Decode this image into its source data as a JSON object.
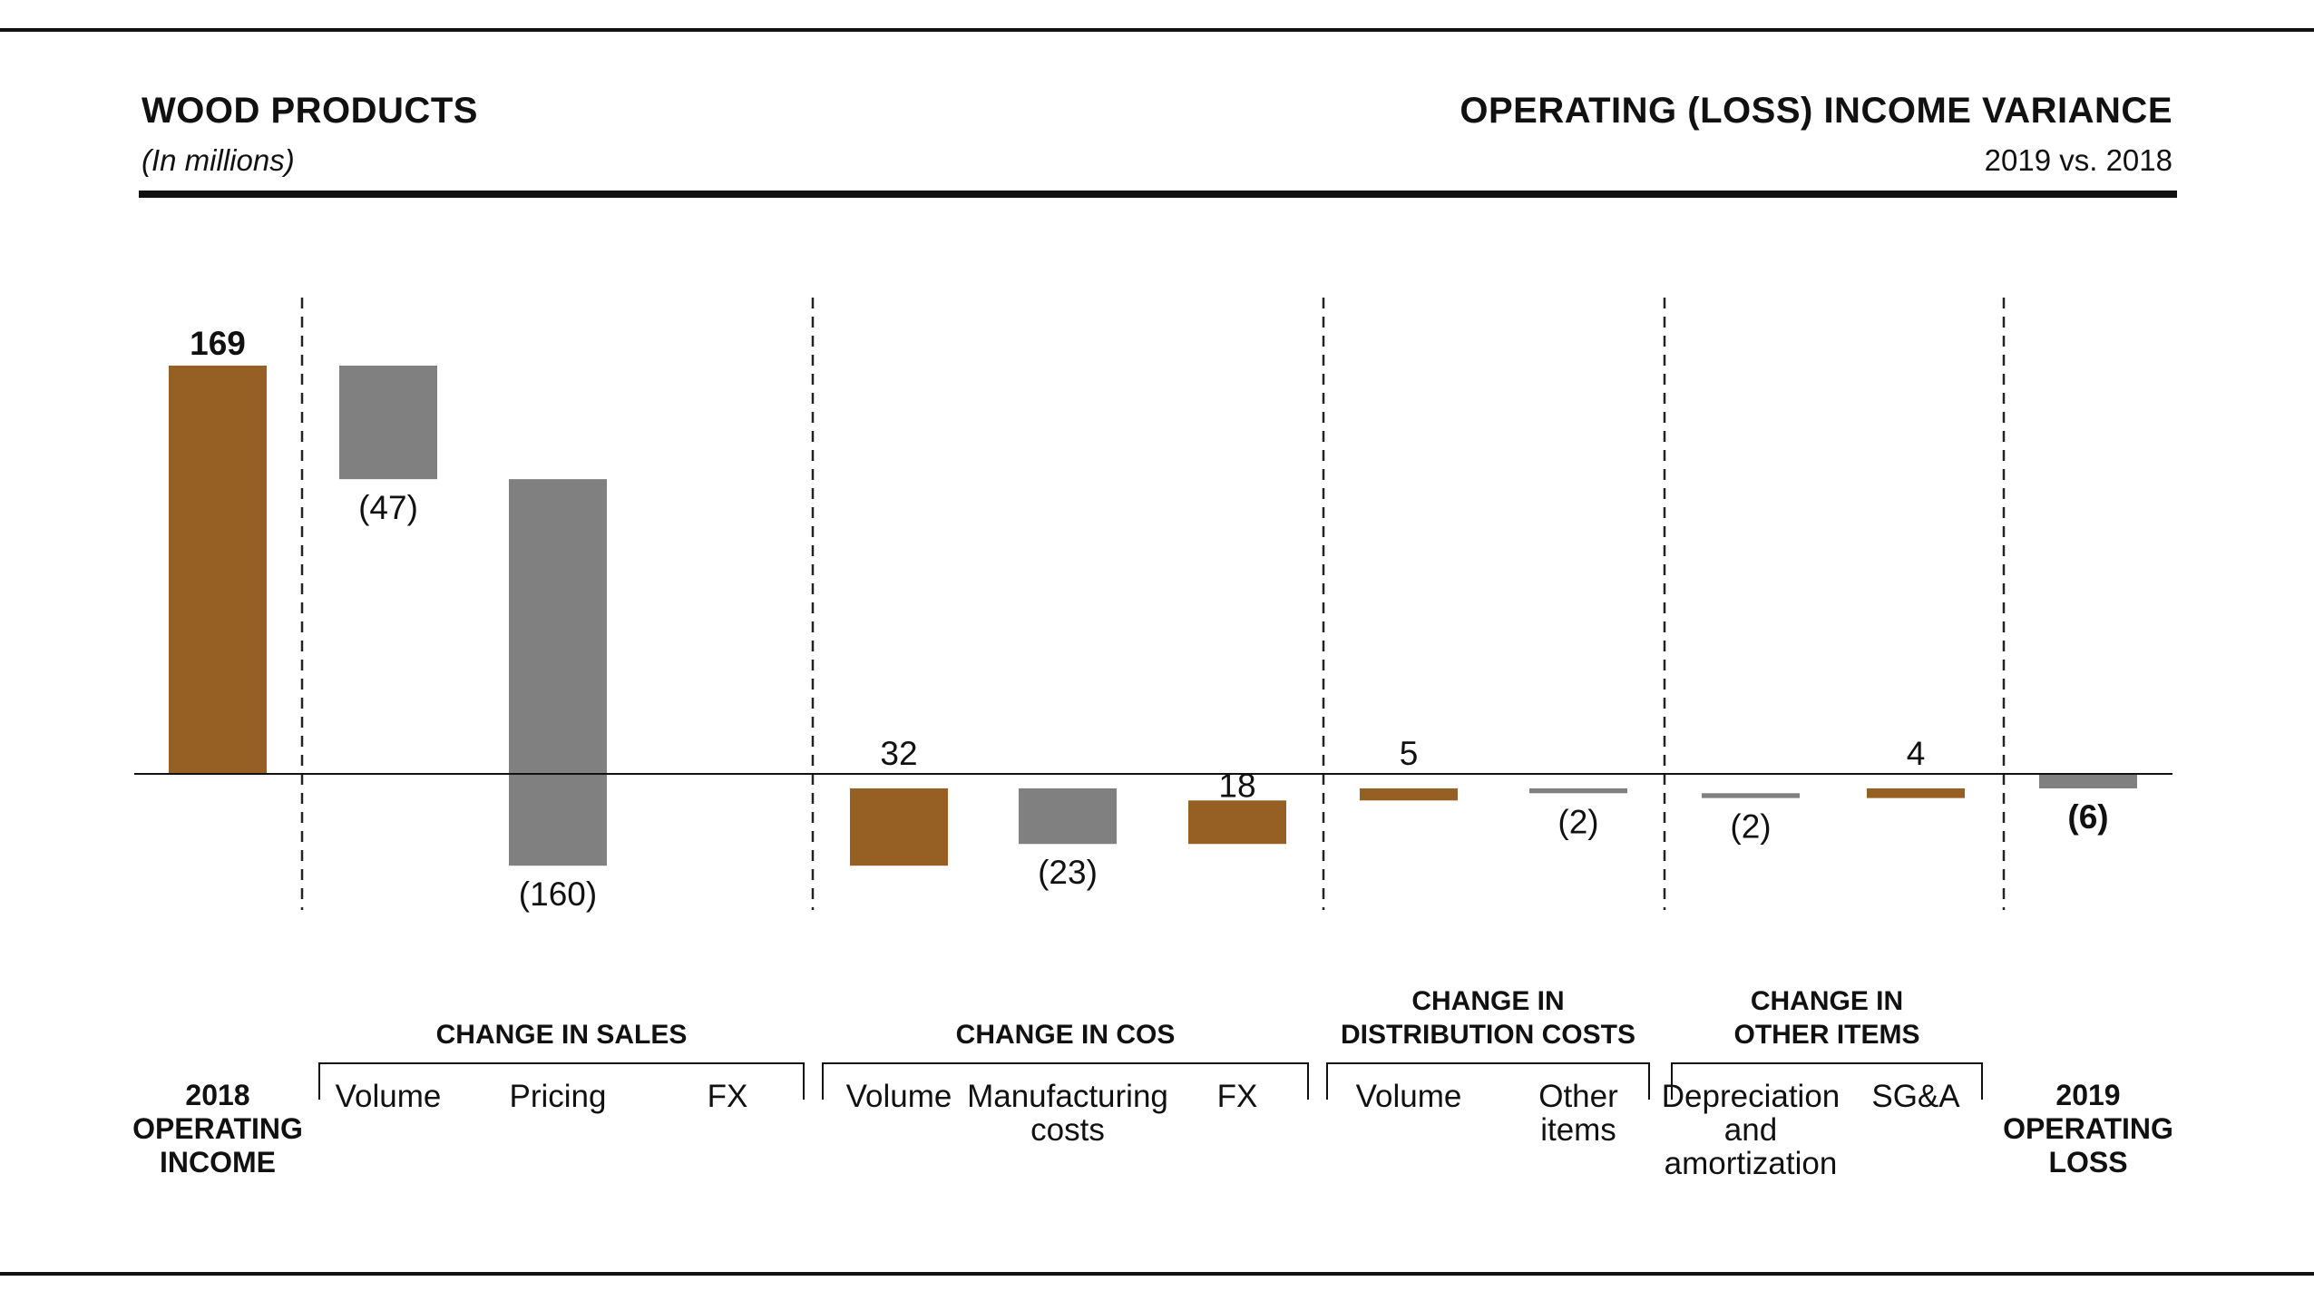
{
  "header": {
    "left_title": "WOOD PRODUCTS",
    "left_subtitle": "(In millions)",
    "right_title": "OPERATING (LOSS) INCOME VARIANCE",
    "right_subtitle": "2019 vs. 2018"
  },
  "colors": {
    "positive": "#966024",
    "negative": "#808080",
    "text": "#111111"
  },
  "chart_data": {
    "type": "bar",
    "subtype": "waterfall",
    "title": "OPERATING (LOSS) INCOME VARIANCE",
    "unit": "(In millions)",
    "categories": [
      "2018 OPERATING INCOME",
      "Volume",
      "Pricing",
      "FX",
      "Volume",
      "Manufacturing costs",
      "FX",
      "Volume",
      "Other items",
      "Depreciation and amortization",
      "SG&A",
      "2019 OPERATING LOSS"
    ],
    "values": [
      169,
      -47,
      -160,
      0,
      32,
      -23,
      18,
      5,
      -2,
      -2,
      4,
      -6
    ],
    "data_labels": [
      "169",
      "(47)",
      "(160)",
      "",
      "32",
      "(23)",
      "18",
      "5",
      "(2)",
      "(2)",
      "4",
      "(6)"
    ],
    "bar_kind": [
      "total",
      "delta",
      "delta",
      "delta",
      "delta",
      "delta",
      "delta",
      "delta",
      "delta",
      "delta",
      "delta",
      "total"
    ],
    "groups": [
      {
        "name": "",
        "members": [
          0
        ],
        "axis_label": [
          "2018",
          "OPERATING",
          "INCOME"
        ]
      },
      {
        "name": "CHANGE IN SALES",
        "members": [
          1,
          2,
          3
        ]
      },
      {
        "name": "CHANGE IN COS",
        "members": [
          4,
          5,
          6
        ]
      },
      {
        "name": "CHANGE IN DISTRIBUTION COSTS",
        "members": [
          7,
          8
        ]
      },
      {
        "name": "CHANGE IN OTHER ITEMS",
        "members": [
          9,
          10
        ]
      },
      {
        "name": "",
        "members": [
          11
        ],
        "axis_label": [
          "2019",
          "OPERATING",
          "LOSS"
        ]
      }
    ],
    "group_title_lines": [
      [],
      [
        "CHANGE IN SALES"
      ],
      [
        "CHANGE IN COS"
      ],
      [
        "CHANGE IN",
        "DISTRIBUTION COSTS"
      ],
      [
        "CHANGE IN",
        "OTHER ITEMS"
      ],
      []
    ],
    "item_label_lines": [
      [],
      [
        "Volume"
      ],
      [
        "Pricing"
      ],
      [
        "FX"
      ],
      [
        "Volume"
      ],
      [
        "Manufacturing",
        "costs"
      ],
      [
        "FX"
      ],
      [
        "Volume"
      ],
      [
        "Other",
        "items"
      ],
      [
        "Depreciation",
        "and",
        "amortization"
      ],
      [
        "SG&A"
      ],
      []
    ],
    "ylim": [
      -80,
      200
    ],
    "grid": false,
    "legend": "none"
  }
}
